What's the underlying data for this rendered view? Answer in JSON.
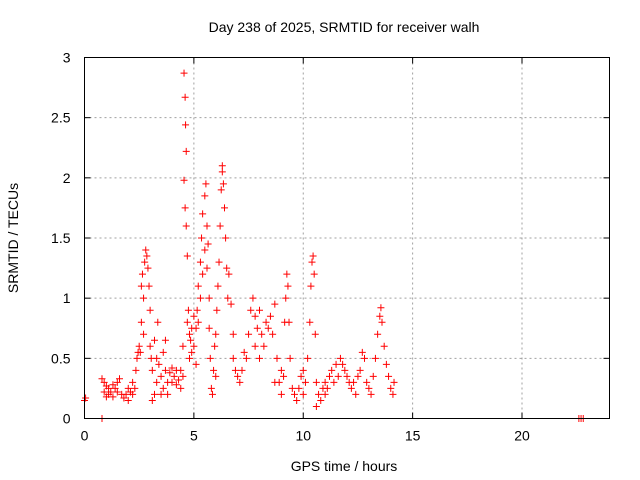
{
  "chart_data": {
    "type": "scatter",
    "title": "Day 238 of 2025, SRMTID for receiver walh",
    "xlabel": "GPS time / hours",
    "ylabel": "SRMTID / TECUs",
    "xlim": [
      0,
      24
    ],
    "ylim": [
      0,
      3
    ],
    "xticks": [
      0,
      5,
      10,
      15,
      20
    ],
    "xtick_labels": [
      "0",
      "5",
      "10",
      "15",
      "20"
    ],
    "yticks": [
      0,
      0.5,
      1,
      1.5,
      2,
      2.5,
      3
    ],
    "ytick_labels": [
      "0",
      "0.5",
      "1",
      "1.5",
      "2",
      "2.5",
      "3"
    ],
    "grid": true,
    "marker": "plus",
    "color": "#ff0000",
    "series": [
      {
        "name": "SRMTID",
        "points": [
          [
            0.0,
            0.15
          ],
          [
            0.05,
            0.17
          ],
          [
            0.8,
            0.33
          ],
          [
            0.8,
            0.0
          ],
          [
            0.9,
            0.3
          ],
          [
            0.9,
            0.22
          ],
          [
            1.0,
            0.18
          ],
          [
            1.0,
            0.27
          ],
          [
            1.1,
            0.2
          ],
          [
            1.1,
            0.25
          ],
          [
            1.2,
            0.22
          ],
          [
            1.3,
            0.18
          ],
          [
            1.3,
            0.28
          ],
          [
            1.4,
            0.25
          ],
          [
            1.5,
            0.3
          ],
          [
            1.5,
            0.22
          ],
          [
            1.6,
            0.33
          ],
          [
            1.7,
            0.2
          ],
          [
            1.8,
            0.17
          ],
          [
            1.9,
            0.2
          ],
          [
            2.0,
            0.15
          ],
          [
            2.0,
            0.25
          ],
          [
            2.1,
            0.22
          ],
          [
            2.2,
            0.3
          ],
          [
            2.2,
            0.2
          ],
          [
            2.3,
            0.25
          ],
          [
            2.35,
            0.4
          ],
          [
            2.4,
            0.5
          ],
          [
            2.45,
            0.55
          ],
          [
            2.5,
            0.6
          ],
          [
            2.55,
            0.55
          ],
          [
            2.6,
            0.8
          ],
          [
            2.6,
            1.1
          ],
          [
            2.65,
            1.2
          ],
          [
            2.7,
            1.0
          ],
          [
            2.7,
            0.7
          ],
          [
            2.75,
            1.3
          ],
          [
            2.8,
            1.4
          ],
          [
            2.85,
            1.35
          ],
          [
            2.9,
            1.25
          ],
          [
            2.95,
            1.1
          ],
          [
            3.0,
            0.6
          ],
          [
            3.0,
            0.9
          ],
          [
            3.05,
            0.5
          ],
          [
            3.1,
            0.4
          ],
          [
            3.1,
            0.15
          ],
          [
            3.2,
            0.2
          ],
          [
            3.2,
            0.65
          ],
          [
            3.3,
            0.3
          ],
          [
            3.3,
            0.5
          ],
          [
            3.35,
            0.8
          ],
          [
            3.4,
            0.45
          ],
          [
            3.5,
            0.35
          ],
          [
            3.5,
            0.2
          ],
          [
            3.6,
            0.55
          ],
          [
            3.6,
            0.25
          ],
          [
            3.7,
            0.65
          ],
          [
            3.7,
            0.4
          ],
          [
            3.8,
            0.3
          ],
          [
            3.8,
            0.2
          ],
          [
            3.9,
            0.38
          ],
          [
            4.0,
            0.3
          ],
          [
            4.0,
            0.42
          ],
          [
            4.1,
            0.35
          ],
          [
            4.2,
            0.28
          ],
          [
            4.2,
            0.4
          ],
          [
            4.3,
            0.32
          ],
          [
            4.4,
            0.4
          ],
          [
            4.4,
            0.25
          ],
          [
            4.5,
            0.35
          ],
          [
            4.5,
            0.6
          ],
          [
            4.55,
            2.87
          ],
          [
            4.55,
            1.98
          ],
          [
            4.6,
            2.67
          ],
          [
            4.6,
            1.75
          ],
          [
            4.62,
            2.44
          ],
          [
            4.65,
            2.22
          ],
          [
            4.65,
            1.6
          ],
          [
            4.7,
            1.35
          ],
          [
            4.7,
            0.8
          ],
          [
            4.75,
            0.9
          ],
          [
            4.8,
            0.7
          ],
          [
            4.8,
            0.5
          ],
          [
            4.85,
            0.65
          ],
          [
            4.9,
            0.55
          ],
          [
            4.9,
            0.75
          ],
          [
            5.0,
            0.85
          ],
          [
            5.0,
            0.6
          ],
          [
            5.1,
            0.45
          ],
          [
            5.1,
            0.75
          ],
          [
            5.15,
            0.9
          ],
          [
            5.2,
            1.1
          ],
          [
            5.2,
            0.8
          ],
          [
            5.3,
            1.3
          ],
          [
            5.3,
            1.0
          ],
          [
            5.35,
            1.5
          ],
          [
            5.4,
            1.7
          ],
          [
            5.4,
            1.2
          ],
          [
            5.5,
            1.85
          ],
          [
            5.5,
            1.4
          ],
          [
            5.55,
            1.95
          ],
          [
            5.6,
            1.6
          ],
          [
            5.6,
            1.25
          ],
          [
            5.65,
            1.45
          ],
          [
            5.7,
            1.0
          ],
          [
            5.7,
            0.75
          ],
          [
            5.75,
            0.5
          ],
          [
            5.8,
            0.25
          ],
          [
            5.85,
            0.2
          ],
          [
            5.9,
            0.4
          ],
          [
            5.95,
            0.6
          ],
          [
            6.0,
            0.7
          ],
          [
            6.0,
            0.35
          ],
          [
            6.05,
            0.9
          ],
          [
            6.1,
            1.1
          ],
          [
            6.15,
            1.3
          ],
          [
            6.2,
            1.6
          ],
          [
            6.25,
            1.9
          ],
          [
            6.3,
            2.1
          ],
          [
            6.3,
            2.05
          ],
          [
            6.35,
            1.95
          ],
          [
            6.4,
            1.75
          ],
          [
            6.45,
            1.5
          ],
          [
            6.5,
            1.25
          ],
          [
            6.55,
            1.0
          ],
          [
            6.6,
            1.2
          ],
          [
            6.7,
            0.95
          ],
          [
            6.8,
            0.7
          ],
          [
            6.8,
            0.5
          ],
          [
            6.9,
            0.4
          ],
          [
            7.0,
            0.35
          ],
          [
            7.1,
            0.3
          ],
          [
            7.2,
            0.4
          ],
          [
            7.3,
            0.55
          ],
          [
            7.4,
            0.5
          ],
          [
            7.5,
            0.7
          ],
          [
            7.6,
            0.9
          ],
          [
            7.7,
            1.0
          ],
          [
            7.8,
            0.85
          ],
          [
            7.8,
            0.6
          ],
          [
            7.9,
            0.75
          ],
          [
            8.0,
            0.9
          ],
          [
            8.0,
            0.5
          ],
          [
            8.1,
            0.7
          ],
          [
            8.2,
            0.6
          ],
          [
            8.3,
            0.8
          ],
          [
            8.4,
            0.75
          ],
          [
            8.5,
            0.85
          ],
          [
            8.6,
            0.7
          ],
          [
            8.7,
            0.95
          ],
          [
            8.7,
            0.3
          ],
          [
            8.8,
            0.5
          ],
          [
            8.9,
            0.3
          ],
          [
            9.0,
            0.2
          ],
          [
            9.0,
            0.4
          ],
          [
            9.1,
            0.35
          ],
          [
            9.15,
            0.8
          ],
          [
            9.2,
            1.0
          ],
          [
            9.25,
            1.2
          ],
          [
            9.3,
            1.1
          ],
          [
            9.35,
            0.8
          ],
          [
            9.4,
            0.5
          ],
          [
            9.5,
            0.25
          ],
          [
            9.6,
            0.2
          ],
          [
            9.7,
            0.15
          ],
          [
            9.8,
            0.25
          ],
          [
            9.9,
            0.35
          ],
          [
            10.0,
            0.4
          ],
          [
            10.0,
            0.2
          ],
          [
            10.1,
            0.3
          ],
          [
            10.2,
            0.5
          ],
          [
            10.3,
            0.8
          ],
          [
            10.35,
            1.1
          ],
          [
            10.4,
            1.3
          ],
          [
            10.45,
            1.35
          ],
          [
            10.5,
            1.2
          ],
          [
            10.55,
            0.7
          ],
          [
            10.6,
            0.3
          ],
          [
            10.6,
            0.1
          ],
          [
            10.7,
            0.2
          ],
          [
            10.8,
            0.15
          ],
          [
            10.9,
            0.25
          ],
          [
            11.0,
            0.2
          ],
          [
            11.0,
            0.3
          ],
          [
            11.1,
            0.25
          ],
          [
            11.2,
            0.35
          ],
          [
            11.3,
            0.4
          ],
          [
            11.4,
            0.3
          ],
          [
            11.5,
            0.45
          ],
          [
            11.6,
            0.35
          ],
          [
            11.7,
            0.5
          ],
          [
            11.8,
            0.45
          ],
          [
            11.9,
            0.4
          ],
          [
            12.0,
            0.35
          ],
          [
            12.1,
            0.3
          ],
          [
            12.2,
            0.25
          ],
          [
            12.3,
            0.3
          ],
          [
            12.4,
            0.2
          ],
          [
            12.5,
            0.35
          ],
          [
            12.6,
            0.4
          ],
          [
            12.7,
            0.55
          ],
          [
            12.8,
            0.5
          ],
          [
            12.9,
            0.3
          ],
          [
            13.0,
            0.25
          ],
          [
            13.1,
            0.2
          ],
          [
            13.2,
            0.35
          ],
          [
            13.3,
            0.5
          ],
          [
            13.4,
            0.7
          ],
          [
            13.5,
            0.85
          ],
          [
            13.55,
            0.92
          ],
          [
            13.6,
            0.8
          ],
          [
            13.7,
            0.6
          ],
          [
            13.8,
            0.45
          ],
          [
            13.9,
            0.35
          ],
          [
            14.0,
            0.25
          ],
          [
            14.1,
            0.2
          ],
          [
            14.15,
            0.3
          ],
          [
            22.6,
            0.0
          ],
          [
            22.7,
            0.0
          ],
          [
            22.8,
            0.0
          ]
        ]
      }
    ]
  }
}
